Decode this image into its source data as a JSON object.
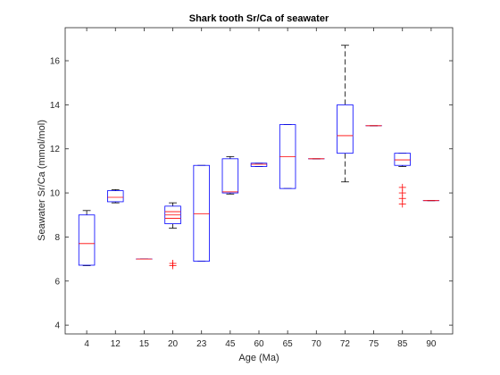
{
  "chart_data": {
    "type": "boxplot",
    "title": "Shark tooth Sr/Ca of seawater",
    "xlabel": "Age (Ma)",
    "ylabel": "Seawater Sr/Ca (mmol/mol)",
    "categories": [
      "4",
      "12",
      "15",
      "20",
      "23",
      "45",
      "60",
      "65",
      "70",
      "72",
      "75",
      "85",
      "90"
    ],
    "ylim": [
      3.6,
      17.5
    ],
    "yticks": [
      4,
      6,
      8,
      10,
      12,
      14,
      16
    ],
    "grid": false,
    "box_color": "#0000ff",
    "median_color": "#ff0000",
    "whisker_color": "#000000",
    "outlier_color": "#ff0000",
    "boxes": [
      {
        "category": "4",
        "whisker_low": 6.7,
        "q1": 6.72,
        "median": 7.7,
        "q3": 9.0,
        "whisker_high": 9.2,
        "outliers": []
      },
      {
        "category": "12",
        "whisker_low": 9.55,
        "q1": 9.6,
        "median": 9.8,
        "q3": 10.1,
        "whisker_high": 10.15,
        "outliers": []
      },
      {
        "category": "15",
        "whisker_low": 7.0,
        "q1": 7.0,
        "median": 7.0,
        "q3": 7.0,
        "whisker_high": 7.0,
        "outliers": []
      },
      {
        "category": "20",
        "whisker_low": 8.4,
        "q1": 8.6,
        "median": 8.85,
        "q3": 9.4,
        "whisker_high": 9.55,
        "outliers": [
          6.7,
          6.8
        ],
        "inner_lines": [
          9.0,
          9.15
        ]
      },
      {
        "category": "23",
        "whisker_low": 6.9,
        "q1": 6.9,
        "median": 9.05,
        "q3": 11.25,
        "whisker_high": 11.25,
        "outliers": []
      },
      {
        "category": "45",
        "whisker_low": 9.95,
        "q1": 10.0,
        "median": 10.05,
        "q3": 11.55,
        "whisker_high": 11.65,
        "outliers": []
      },
      {
        "category": "60",
        "whisker_low": 11.2,
        "q1": 11.2,
        "median": 11.3,
        "q3": 11.35,
        "whisker_high": 11.35,
        "outliers": []
      },
      {
        "category": "65",
        "whisker_low": 10.2,
        "q1": 10.2,
        "median": 11.65,
        "q3": 13.1,
        "whisker_high": 13.1,
        "outliers": []
      },
      {
        "category": "70",
        "whisker_low": 11.55,
        "q1": 11.55,
        "median": 11.55,
        "q3": 11.55,
        "whisker_high": 11.55,
        "outliers": []
      },
      {
        "category": "72",
        "whisker_low": 10.5,
        "q1": 11.8,
        "median": 12.6,
        "q3": 14.0,
        "whisker_high": 16.7,
        "outliers": []
      },
      {
        "category": "75",
        "whisker_low": 13.05,
        "q1": 13.05,
        "median": 13.05,
        "q3": 13.05,
        "whisker_high": 13.05,
        "outliers": []
      },
      {
        "category": "85",
        "whisker_low": 11.2,
        "q1": 11.25,
        "median": 11.5,
        "q3": 11.8,
        "whisker_high": 11.8,
        "outliers": [
          9.5,
          9.75,
          10.0,
          10.25
        ]
      },
      {
        "category": "90",
        "whisker_low": 9.65,
        "q1": 9.65,
        "median": 9.65,
        "q3": 9.65,
        "whisker_high": 9.65,
        "outliers": []
      }
    ]
  }
}
